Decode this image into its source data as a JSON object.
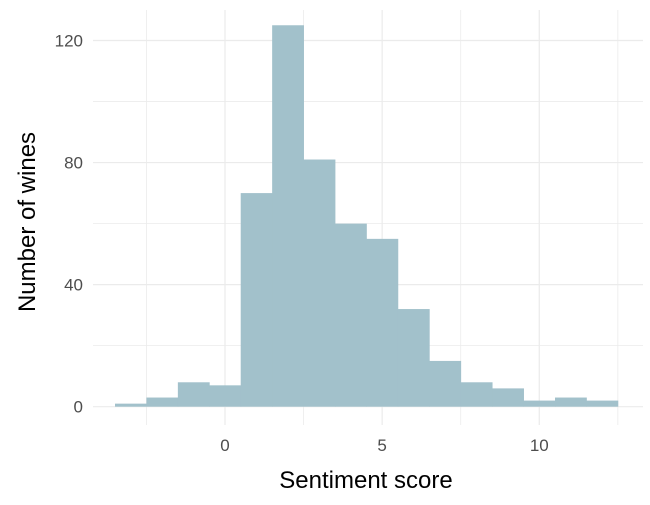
{
  "chart_data": {
    "type": "bar",
    "title": "",
    "xlabel": "Sentiment score",
    "ylabel": "Number of wines",
    "xlim": [
      -4.2,
      13.3
    ],
    "ylim": [
      -6,
      130
    ],
    "x_ticks": [
      0,
      5,
      10
    ],
    "x_tick_labels": [
      "0",
      "5",
      "10"
    ],
    "y_ticks": [
      0,
      40,
      80,
      120
    ],
    "y_tick_labels": [
      "0",
      "40",
      "80",
      "120"
    ],
    "bin_width": 1,
    "bins": [
      {
        "start": -3.5,
        "end": -2.5,
        "count": 1
      },
      {
        "start": -2.5,
        "end": -1.5,
        "count": 3
      },
      {
        "start": -1.5,
        "end": -0.5,
        "count": 8
      },
      {
        "start": -0.5,
        "end": 0.5,
        "count": 7
      },
      {
        "start": 0.5,
        "end": 1.5,
        "count": 70
      },
      {
        "start": 1.5,
        "end": 2.5,
        "count": 125
      },
      {
        "start": 2.5,
        "end": 3.5,
        "count": 81
      },
      {
        "start": 3.5,
        "end": 4.5,
        "count": 60
      },
      {
        "start": 4.5,
        "end": 5.5,
        "count": 55
      },
      {
        "start": 5.5,
        "end": 6.5,
        "count": 32
      },
      {
        "start": 6.5,
        "end": 7.5,
        "count": 15
      },
      {
        "start": 7.5,
        "end": 8.5,
        "count": 8
      },
      {
        "start": 8.5,
        "end": 9.5,
        "count": 6
      },
      {
        "start": 9.5,
        "end": 10.5,
        "count": 2
      },
      {
        "start": 10.5,
        "end": 11.5,
        "count": 3
      },
      {
        "start": 11.5,
        "end": 12.5,
        "count": 2
      }
    ],
    "bar_color": "#a2c1cb",
    "grid": true,
    "grid_color": "#ebebeb",
    "background": "#ffffff",
    "legend": "none"
  }
}
